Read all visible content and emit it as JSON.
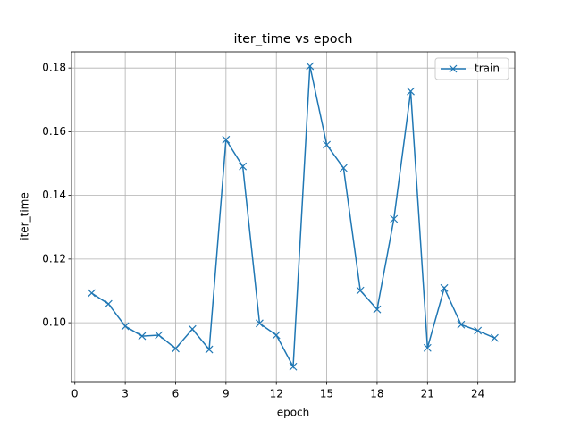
{
  "chart_data": {
    "type": "line",
    "title": "iter_time vs epoch",
    "x_label": "epoch",
    "y_label": "iter_time",
    "x": [
      1,
      2,
      3,
      4,
      5,
      6,
      7,
      8,
      9,
      10,
      11,
      12,
      13,
      14,
      15,
      16,
      17,
      18,
      19,
      20,
      21,
      22,
      23,
      24,
      25
    ],
    "series": [
      {
        "name": "train",
        "color": "#1f77b4",
        "marker": "x",
        "values": [
          0.1093,
          0.1059,
          0.0989,
          0.0958,
          0.0961,
          0.0919,
          0.098,
          0.0916,
          0.1575,
          0.1491,
          0.0998,
          0.0961,
          0.0862,
          0.1806,
          0.1559,
          0.1486,
          0.1101,
          0.1042,
          0.1326,
          0.1727,
          0.0921,
          0.1109,
          0.0994,
          0.0975,
          0.0952
        ]
      }
    ],
    "xlim": [
      -0.2,
      26.2
    ],
    "xticks": [
      0,
      3,
      6,
      9,
      12,
      15,
      18,
      21,
      24
    ],
    "ylim": [
      0.0815,
      0.1851
    ],
    "yticks": [
      {
        "value": 0.1,
        "label": "0.10"
      },
      0.12,
      0.14,
      0.16,
      0.18
    ],
    "grid": true,
    "legend": "upper right"
  }
}
